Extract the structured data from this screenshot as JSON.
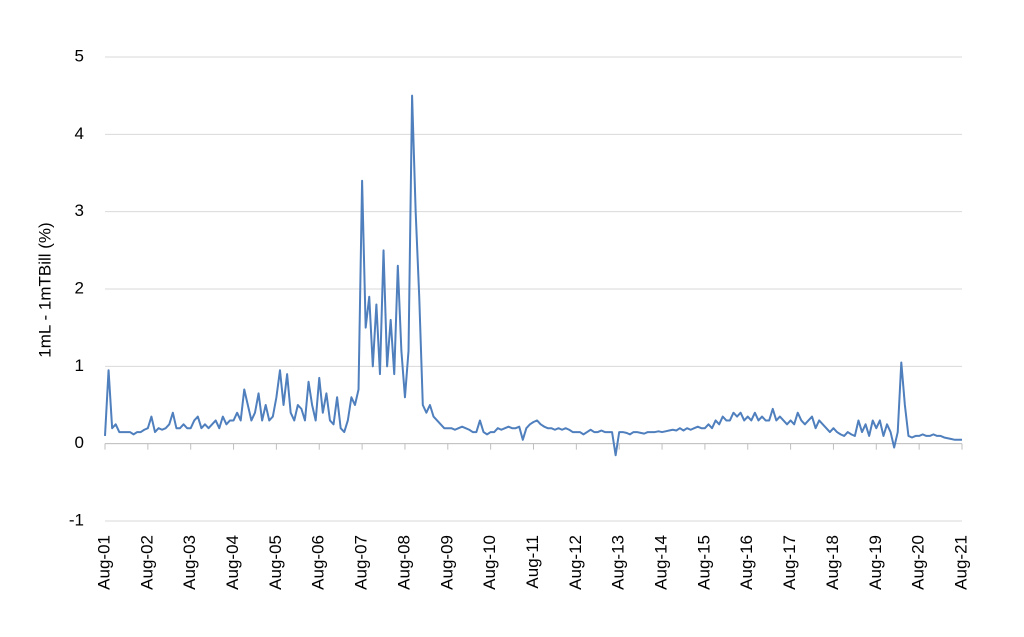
{
  "chart_data": {
    "type": "line",
    "y_label": "1mL - 1mTBill (%)",
    "ylim": [
      -1,
      5
    ],
    "yticks": [
      -1,
      0,
      1,
      2,
      3,
      4,
      5
    ],
    "grid": true,
    "categories": [
      "Aug-01",
      null,
      null,
      null,
      null,
      null,
      null,
      null,
      null,
      null,
      null,
      null,
      "Aug-02",
      null,
      null,
      null,
      null,
      null,
      null,
      null,
      null,
      null,
      null,
      null,
      "Aug-03",
      null,
      null,
      null,
      null,
      null,
      null,
      null,
      null,
      null,
      null,
      null,
      "Aug-04",
      null,
      null,
      null,
      null,
      null,
      null,
      null,
      null,
      null,
      null,
      null,
      "Aug-05",
      null,
      null,
      null,
      null,
      null,
      null,
      null,
      null,
      null,
      null,
      null,
      "Aug-06",
      null,
      null,
      null,
      null,
      null,
      null,
      null,
      null,
      null,
      null,
      null,
      "Aug-07",
      null,
      null,
      null,
      null,
      null,
      null,
      null,
      null,
      null,
      null,
      null,
      "Aug-08",
      null,
      null,
      null,
      null,
      null,
      null,
      null,
      null,
      null,
      null,
      null,
      "Aug-09",
      null,
      null,
      null,
      null,
      null,
      null,
      null,
      null,
      null,
      null,
      null,
      "Aug-10",
      null,
      null,
      null,
      null,
      null,
      null,
      null,
      null,
      null,
      null,
      null,
      "Aug-11",
      null,
      null,
      null,
      null,
      null,
      null,
      null,
      null,
      null,
      null,
      null,
      "Aug-12",
      null,
      null,
      null,
      null,
      null,
      null,
      null,
      null,
      null,
      null,
      null,
      "Aug-13",
      null,
      null,
      null,
      null,
      null,
      null,
      null,
      null,
      null,
      null,
      null,
      "Aug-14",
      null,
      null,
      null,
      null,
      null,
      null,
      null,
      null,
      null,
      null,
      null,
      "Aug-15",
      null,
      null,
      null,
      null,
      null,
      null,
      null,
      null,
      null,
      null,
      null,
      "Aug-16",
      null,
      null,
      null,
      null,
      null,
      null,
      null,
      null,
      null,
      null,
      null,
      "Aug-17",
      null,
      null,
      null,
      null,
      null,
      null,
      null,
      null,
      null,
      null,
      null,
      "Aug-18",
      null,
      null,
      null,
      null,
      null,
      null,
      null,
      null,
      null,
      null,
      null,
      "Aug-19",
      null,
      null,
      null,
      null,
      null,
      null,
      null,
      null,
      null,
      null,
      null,
      "Aug-20",
      null,
      null,
      null,
      null,
      null,
      null,
      null,
      null,
      null,
      null,
      null,
      "Aug-21"
    ],
    "series": [
      {
        "color": "#4f7fbd",
        "values": [
          0.1,
          0.95,
          0.2,
          0.25,
          0.15,
          0.15,
          0.15,
          0.15,
          0.12,
          0.15,
          0.15,
          0.18,
          0.2,
          0.35,
          0.15,
          0.2,
          0.18,
          0.2,
          0.25,
          0.4,
          0.2,
          0.2,
          0.25,
          0.2,
          0.2,
          0.3,
          0.35,
          0.2,
          0.25,
          0.2,
          0.25,
          0.3,
          0.2,
          0.35,
          0.25,
          0.3,
          0.3,
          0.4,
          0.3,
          0.7,
          0.5,
          0.3,
          0.4,
          0.65,
          0.3,
          0.5,
          0.3,
          0.35,
          0.6,
          0.95,
          0.5,
          0.9,
          0.4,
          0.3,
          0.5,
          0.45,
          0.3,
          0.8,
          0.5,
          0.3,
          0.85,
          0.4,
          0.65,
          0.3,
          0.25,
          0.6,
          0.2,
          0.15,
          0.3,
          0.6,
          0.5,
          0.7,
          3.4,
          1.5,
          1.9,
          1.0,
          1.8,
          0.9,
          2.5,
          1.0,
          1.6,
          0.9,
          2.3,
          1.2,
          0.6,
          1.2,
          4.5,
          3.0,
          1.9,
          0.5,
          0.4,
          0.5,
          0.35,
          0.3,
          0.25,
          0.2,
          0.2,
          0.2,
          0.18,
          0.2,
          0.22,
          0.2,
          0.18,
          0.15,
          0.15,
          0.3,
          0.15,
          0.12,
          0.15,
          0.15,
          0.2,
          0.18,
          0.2,
          0.22,
          0.2,
          0.2,
          0.22,
          0.05,
          0.2,
          0.25,
          0.28,
          0.3,
          0.25,
          0.22,
          0.2,
          0.2,
          0.18,
          0.2,
          0.18,
          0.2,
          0.18,
          0.15,
          0.15,
          0.15,
          0.12,
          0.15,
          0.18,
          0.15,
          0.15,
          0.17,
          0.15,
          0.15,
          0.15,
          -0.15,
          0.15,
          0.15,
          0.14,
          0.12,
          0.15,
          0.15,
          0.14,
          0.13,
          0.15,
          0.15,
          0.15,
          0.16,
          0.15,
          0.16,
          0.17,
          0.18,
          0.17,
          0.2,
          0.17,
          0.2,
          0.18,
          0.2,
          0.22,
          0.2,
          0.2,
          0.25,
          0.2,
          0.3,
          0.25,
          0.35,
          0.3,
          0.3,
          0.4,
          0.35,
          0.4,
          0.3,
          0.35,
          0.3,
          0.4,
          0.3,
          0.35,
          0.3,
          0.3,
          0.45,
          0.3,
          0.35,
          0.3,
          0.25,
          0.3,
          0.25,
          0.4,
          0.3,
          0.25,
          0.3,
          0.35,
          0.2,
          0.3,
          0.25,
          0.2,
          0.15,
          0.2,
          0.15,
          0.12,
          0.1,
          0.15,
          0.12,
          0.1,
          0.3,
          0.15,
          0.25,
          0.1,
          0.3,
          0.2,
          0.3,
          0.1,
          0.25,
          0.15,
          -0.05,
          0.15,
          1.05,
          0.5,
          0.1,
          0.08,
          0.1,
          0.1,
          0.12,
          0.1,
          0.1,
          0.12,
          0.1,
          0.1,
          0.08,
          0.07,
          0.06,
          0.05,
          0.05,
          0.05
        ]
      }
    ]
  }
}
